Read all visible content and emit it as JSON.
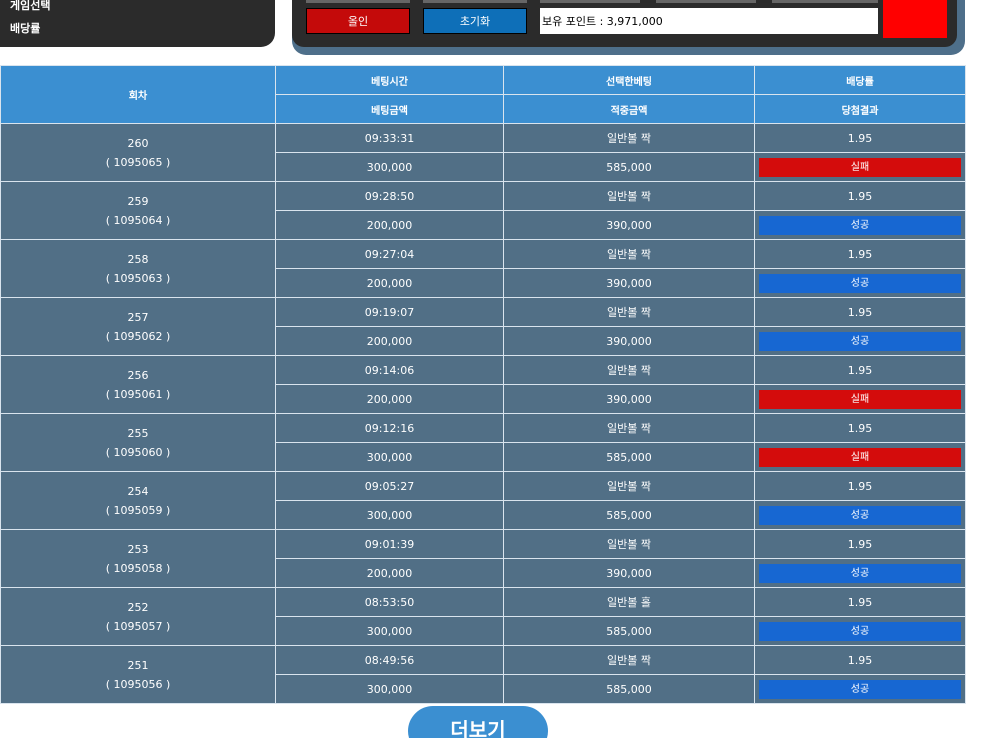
{
  "top": {
    "label_game": "게임선택",
    "label_odds": "배당률",
    "allin_label": "올인",
    "reset_label": "초기화",
    "points_text": "보유 포인트 : 3,971,000",
    "alert_color": "#ff0000"
  },
  "table": {
    "headers": {
      "round": "회차",
      "bet_time": "베팅시간",
      "selected_bet": "선택한베팅",
      "odds": "배당률",
      "bet_amount": "베팅금액",
      "win_amount": "적중금액",
      "result": "당첨결과"
    },
    "rows": [
      {
        "round": "260",
        "game_id": "( 1095065 )",
        "time": "09:33:31",
        "selection": "일반볼 짝",
        "odds": "1.95",
        "amount": "300,000",
        "win": "585,000",
        "result": "실패",
        "status": "fail"
      },
      {
        "round": "259",
        "game_id": "( 1095064 )",
        "time": "09:28:50",
        "selection": "일반볼 짝",
        "odds": "1.95",
        "amount": "200,000",
        "win": "390,000",
        "result": "성공",
        "status": "success"
      },
      {
        "round": "258",
        "game_id": "( 1095063 )",
        "time": "09:27:04",
        "selection": "일반볼 짝",
        "odds": "1.95",
        "amount": "200,000",
        "win": "390,000",
        "result": "성공",
        "status": "success"
      },
      {
        "round": "257",
        "game_id": "( 1095062 )",
        "time": "09:19:07",
        "selection": "일반볼 짝",
        "odds": "1.95",
        "amount": "200,000",
        "win": "390,000",
        "result": "성공",
        "status": "success"
      },
      {
        "round": "256",
        "game_id": "( 1095061 )",
        "time": "09:14:06",
        "selection": "일반볼 짝",
        "odds": "1.95",
        "amount": "200,000",
        "win": "390,000",
        "result": "실패",
        "status": "fail"
      },
      {
        "round": "255",
        "game_id": "( 1095060 )",
        "time": "09:12:16",
        "selection": "일반볼 짝",
        "odds": "1.95",
        "amount": "300,000",
        "win": "585,000",
        "result": "실패",
        "status": "fail"
      },
      {
        "round": "254",
        "game_id": "( 1095059 )",
        "time": "09:05:27",
        "selection": "일반볼 짝",
        "odds": "1.95",
        "amount": "300,000",
        "win": "585,000",
        "result": "성공",
        "status": "success"
      },
      {
        "round": "253",
        "game_id": "( 1095058 )",
        "time": "09:01:39",
        "selection": "일반볼 짝",
        "odds": "1.95",
        "amount": "200,000",
        "win": "390,000",
        "result": "성공",
        "status": "success"
      },
      {
        "round": "252",
        "game_id": "( 1095057 )",
        "time": "08:53:50",
        "selection": "일반볼 홀",
        "odds": "1.95",
        "amount": "300,000",
        "win": "585,000",
        "result": "성공",
        "status": "success"
      },
      {
        "round": "251",
        "game_id": "( 1095056 )",
        "time": "08:49:56",
        "selection": "일반볼 짝",
        "odds": "1.95",
        "amount": "300,000",
        "win": "585,000",
        "result": "성공",
        "status": "success"
      }
    ]
  },
  "more_label": "더보기"
}
